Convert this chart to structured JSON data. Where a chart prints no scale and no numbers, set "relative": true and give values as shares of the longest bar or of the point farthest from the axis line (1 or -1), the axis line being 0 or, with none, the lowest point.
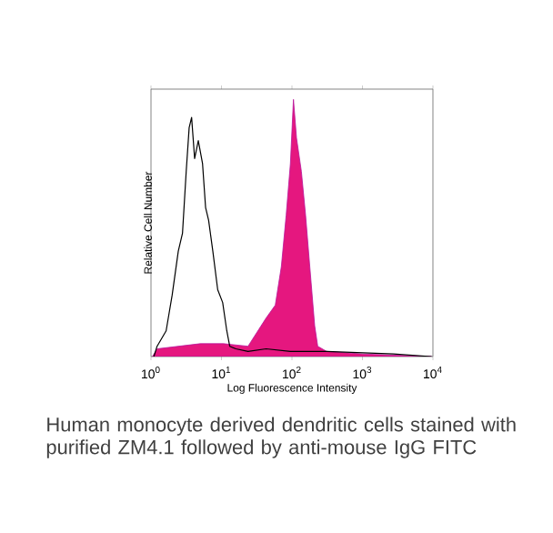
{
  "chart_data": {
    "type": "line",
    "xlabel": "Log Fluorescence Intensity",
    "ylabel": "Relative Cell Number",
    "relative": true,
    "log": "x",
    "xlim": [
      1,
      10000
    ],
    "xticks": [
      {
        "value": 1,
        "label": "10$^{0}$"
      },
      {
        "value": 10,
        "label": "10$^{1}$"
      },
      {
        "value": 100,
        "label": "10$^{2}$"
      },
      {
        "value": 1000,
        "label": "10$^{3}$"
      },
      {
        "value": 10000,
        "label": "10$^{4}$"
      }
    ],
    "series": [
      {
        "type": "area",
        "color": "#e5177f",
        "x": [
          1.05,
          1.22,
          5.0,
          10.7,
          23.8,
          43,
          58,
          70.7,
          82.8,
          95,
          105,
          116,
          136,
          156,
          179,
          210,
          232,
          310,
          1000,
          9500
        ],
        "values": [
          0,
          0.03,
          0.05,
          0.05,
          0.04,
          0.15,
          0.2,
          0.35,
          0.55,
          0.75,
          1.0,
          0.85,
          0.72,
          0.55,
          0.35,
          0.12,
          0.04,
          0.02,
          0.01,
          0
        ]
      },
      {
        "color": "#000000",
        "x": [
          1.1,
          1.22,
          1.64,
          2.0,
          2.44,
          2.8,
          3.16,
          3.48,
          3.77,
          4.16,
          4.69,
          5.39,
          5.95,
          6.57,
          7.54,
          8.84,
          10.4,
          11.9,
          13.1,
          16,
          23.8,
          43,
          95,
          310,
          2750,
          9500
        ],
        "values": [
          0,
          0.04,
          0.1,
          0.24,
          0.41,
          0.48,
          0.72,
          0.89,
          0.93,
          0.77,
          0.84,
          0.75,
          0.58,
          0.53,
          0.41,
          0.26,
          0.21,
          0.1,
          0.04,
          0.03,
          0.02,
          0.03,
          0.02,
          0.02,
          0.01,
          0
        ]
      }
    ],
    "annotations": [
      "Human monocyte derived dendritic cells stained with purified ZM4.1 followed by anti-mouse IgG FITC"
    ]
  }
}
